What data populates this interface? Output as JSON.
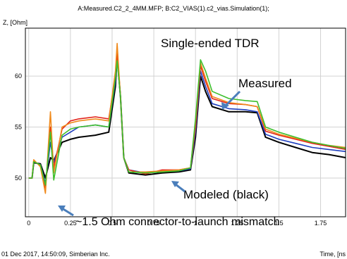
{
  "header_title": "A:Measured.C2_2_4MM.MFP; B:C2_VIAS(1).c2_vias.Simulation(1);",
  "footer_left": "01 Dec 2017, 14:50:09, Simberian Inc.",
  "chart_data": {
    "type": "line",
    "title": "Single-ended TDR",
    "ylabel": "Z, [Ohm]",
    "xlabel": "Time, [ns",
    "xlim": [
      -0.02,
      1.9
    ],
    "ylim": [
      46.2,
      64.7
    ],
    "xticks": [
      0,
      0.25,
      0.5,
      0.75,
      1,
      1.25,
      1.5,
      1.75
    ],
    "xtick_labels": [
      "0",
      "0.25",
      "0.5",
      "0.75",
      "1",
      "1.25",
      "1.5",
      "1.75"
    ],
    "yticks": [
      50,
      55,
      60
    ],
    "ytick_labels": [
      "50",
      "55",
      "60"
    ],
    "grid": true,
    "annotations": [
      "Measured",
      "Modeled (black)",
      "~1.5 Ohm connector-to-launch mismatch"
    ],
    "series": [
      {
        "color": "#000000",
        "points": [
          [
            0,
            50
          ],
          [
            0.02,
            50
          ],
          [
            0.03,
            51.5
          ],
          [
            0.07,
            51.4
          ],
          [
            0.1,
            50
          ],
          [
            0.13,
            52
          ],
          [
            0.15,
            51.7
          ],
          [
            0.2,
            53.5
          ],
          [
            0.25,
            53.8
          ],
          [
            0.3,
            54
          ],
          [
            0.4,
            54.2
          ],
          [
            0.48,
            54.5
          ],
          [
            0.52,
            59
          ],
          [
            0.53,
            62
          ],
          [
            0.55,
            58
          ],
          [
            0.57,
            52
          ],
          [
            0.6,
            50.5
          ],
          [
            0.7,
            50.3
          ],
          [
            0.8,
            50.5
          ],
          [
            0.9,
            50.6
          ],
          [
            0.97,
            50.8
          ],
          [
            1.0,
            54
          ],
          [
            1.03,
            60
          ],
          [
            1.06,
            58.5
          ],
          [
            1.1,
            57
          ],
          [
            1.2,
            56.5
          ],
          [
            1.3,
            56.5
          ],
          [
            1.37,
            56.4
          ],
          [
            1.42,
            54
          ],
          [
            1.5,
            53.5
          ],
          [
            1.6,
            53
          ],
          [
            1.7,
            52.5
          ],
          [
            1.8,
            52.3
          ],
          [
            1.9,
            52
          ]
        ]
      },
      {
        "color": "#1f3fbf",
        "points": [
          [
            0,
            50
          ],
          [
            0.02,
            50
          ],
          [
            0.03,
            51.6
          ],
          [
            0.07,
            51.3
          ],
          [
            0.1,
            49.5
          ],
          [
            0.13,
            53.5
          ],
          [
            0.15,
            51.5
          ],
          [
            0.2,
            54
          ],
          [
            0.25,
            54.5
          ],
          [
            0.3,
            55
          ],
          [
            0.4,
            55.2
          ],
          [
            0.48,
            55
          ],
          [
            0.52,
            59.5
          ],
          [
            0.53,
            61.8
          ],
          [
            0.55,
            58
          ],
          [
            0.57,
            52
          ],
          [
            0.6,
            50.8
          ],
          [
            0.7,
            50.5
          ],
          [
            0.8,
            50.7
          ],
          [
            0.9,
            50.7
          ],
          [
            0.97,
            50.9
          ],
          [
            1.0,
            54.5
          ],
          [
            1.03,
            60.5
          ],
          [
            1.06,
            59
          ],
          [
            1.1,
            57.3
          ],
          [
            1.2,
            56.8
          ],
          [
            1.3,
            56.7
          ],
          [
            1.37,
            56.5
          ],
          [
            1.42,
            54.3
          ],
          [
            1.5,
            53.8
          ],
          [
            1.6,
            53.4
          ],
          [
            1.7,
            53
          ],
          [
            1.8,
            52.8
          ],
          [
            1.9,
            52.6
          ]
        ]
      },
      {
        "color": "#e2231a",
        "points": [
          [
            0,
            50
          ],
          [
            0.02,
            50
          ],
          [
            0.03,
            51.7
          ],
          [
            0.07,
            51.2
          ],
          [
            0.1,
            49
          ],
          [
            0.13,
            55
          ],
          [
            0.15,
            51
          ],
          [
            0.2,
            54.8
          ],
          [
            0.25,
            55.6
          ],
          [
            0.3,
            55.8
          ],
          [
            0.4,
            56
          ],
          [
            0.48,
            55.8
          ],
          [
            0.52,
            60
          ],
          [
            0.53,
            62.2
          ],
          [
            0.55,
            58
          ],
          [
            0.57,
            52
          ],
          [
            0.6,
            50.8
          ],
          [
            0.7,
            50.4
          ],
          [
            0.8,
            50.8
          ],
          [
            0.9,
            50.8
          ],
          [
            0.97,
            51
          ],
          [
            1.0,
            55
          ],
          [
            1.03,
            61
          ],
          [
            1.06,
            59.5
          ],
          [
            1.1,
            57.8
          ],
          [
            1.2,
            57.3
          ],
          [
            1.3,
            57.2
          ],
          [
            1.37,
            57
          ],
          [
            1.42,
            54.6
          ],
          [
            1.5,
            54.2
          ],
          [
            1.6,
            53.8
          ],
          [
            1.7,
            53.4
          ],
          [
            1.8,
            53.1
          ],
          [
            1.9,
            52.8
          ]
        ]
      },
      {
        "color": "#f08a1c",
        "points": [
          [
            0,
            50
          ],
          [
            0.02,
            50
          ],
          [
            0.03,
            51.8
          ],
          [
            0.07,
            51.1
          ],
          [
            0.1,
            48.5
          ],
          [
            0.13,
            56.5
          ],
          [
            0.15,
            50.5
          ],
          [
            0.2,
            55
          ],
          [
            0.25,
            55.4
          ],
          [
            0.3,
            55.6
          ],
          [
            0.4,
            55.8
          ],
          [
            0.48,
            55.6
          ],
          [
            0.52,
            60.5
          ],
          [
            0.53,
            63.2
          ],
          [
            0.55,
            58
          ],
          [
            0.57,
            52
          ],
          [
            0.6,
            50.6
          ],
          [
            0.7,
            50.6
          ],
          [
            0.8,
            50.7
          ],
          [
            0.9,
            50.8
          ],
          [
            0.97,
            51
          ],
          [
            1.0,
            55.5
          ],
          [
            1.03,
            61.3
          ],
          [
            1.06,
            59.8
          ],
          [
            1.1,
            58
          ],
          [
            1.2,
            57.4
          ],
          [
            1.3,
            57.2
          ],
          [
            1.37,
            57
          ],
          [
            1.42,
            54.8
          ],
          [
            1.5,
            54.3
          ],
          [
            1.6,
            53.9
          ],
          [
            1.7,
            53.5
          ],
          [
            1.8,
            53.2
          ],
          [
            1.9,
            53
          ]
        ]
      },
      {
        "color": "#3dbf2c",
        "points": [
          [
            0,
            50
          ],
          [
            0.02,
            50
          ],
          [
            0.03,
            51.6
          ],
          [
            0.07,
            51.3
          ],
          [
            0.1,
            49.3
          ],
          [
            0.13,
            54.5
          ],
          [
            0.15,
            49.8
          ],
          [
            0.2,
            54.2
          ],
          [
            0.25,
            54.8
          ],
          [
            0.3,
            55
          ],
          [
            0.4,
            55.2
          ],
          [
            0.48,
            55
          ],
          [
            0.52,
            59.8
          ],
          [
            0.53,
            61.5
          ],
          [
            0.55,
            58
          ],
          [
            0.57,
            52
          ],
          [
            0.6,
            50.6
          ],
          [
            0.7,
            50.5
          ],
          [
            0.8,
            50.6
          ],
          [
            0.9,
            50.7
          ],
          [
            0.97,
            51
          ],
          [
            1.0,
            55.8
          ],
          [
            1.03,
            61.6
          ],
          [
            1.06,
            60.5
          ],
          [
            1.1,
            58.5
          ],
          [
            1.2,
            57.8
          ],
          [
            1.3,
            57.6
          ],
          [
            1.37,
            57.5
          ],
          [
            1.42,
            55
          ],
          [
            1.5,
            54.5
          ],
          [
            1.6,
            54
          ],
          [
            1.7,
            53.5
          ],
          [
            1.8,
            53.2
          ],
          [
            1.9,
            52.9
          ]
        ]
      }
    ]
  }
}
